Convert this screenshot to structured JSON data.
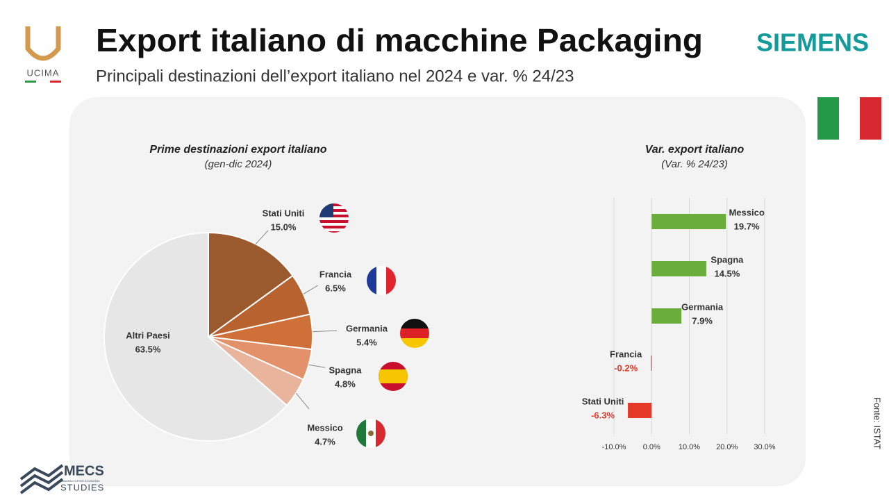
{
  "header": {
    "title": "Export italiano di macchine Packaging",
    "subtitle": "Principali destinazioni dell’export italiano nel 2024 e var. % 24/23"
  },
  "logos": {
    "ucima": "UCIMA",
    "siemens": "SIEMENS",
    "mecs": "MECS",
    "mecs_tagline": "MANUFACTURING ECONOMIC",
    "studies": "STUDIES"
  },
  "source": "Fonte: ISTAT",
  "chart_data": [
    {
      "type": "pie",
      "title": "Prime destinazioni export italiano",
      "subtitle": "(gen-dic 2024)",
      "categories": [
        "Stati Uniti",
        "Francia",
        "Germania",
        "Spagna",
        "Messico",
        "Altri Paesi"
      ],
      "values": [
        15.0,
        6.5,
        5.4,
        4.8,
        4.7,
        63.5
      ],
      "value_labels": [
        "15.0%",
        "6.5%",
        "5.4%",
        "4.8%",
        "4.7%",
        "63.5%"
      ],
      "colors": [
        "#9b5a2e",
        "#b8622f",
        "#cf7038",
        "#e2916a",
        "#e8b49c",
        "#e6e6e6"
      ]
    },
    {
      "type": "hbar",
      "title": "Var. export italiano",
      "subtitle": "(Var. % 24/23)",
      "categories": [
        "Messico",
        "Spagna",
        "Germania",
        "Francia",
        "Stati Uniti"
      ],
      "values": [
        19.7,
        14.5,
        7.9,
        -0.2,
        -6.3
      ],
      "value_labels": [
        "19.7%",
        "14.5%",
        "7.9%",
        "-0.2%",
        "-6.3%"
      ],
      "positive_color": "#6aad3d",
      "negative_color": "#e5392a",
      "xlim": [
        -10,
        30
      ],
      "xticks": [
        {
          "value": -10,
          "label": "-10.0%"
        },
        {
          "value": 0,
          "label": "0.0%"
        },
        {
          "value": 10,
          "label": "10.0%"
        },
        {
          "value": 20,
          "label": "20.0%"
        },
        {
          "value": 30,
          "label": "30.0%"
        }
      ],
      "grid": true
    }
  ]
}
